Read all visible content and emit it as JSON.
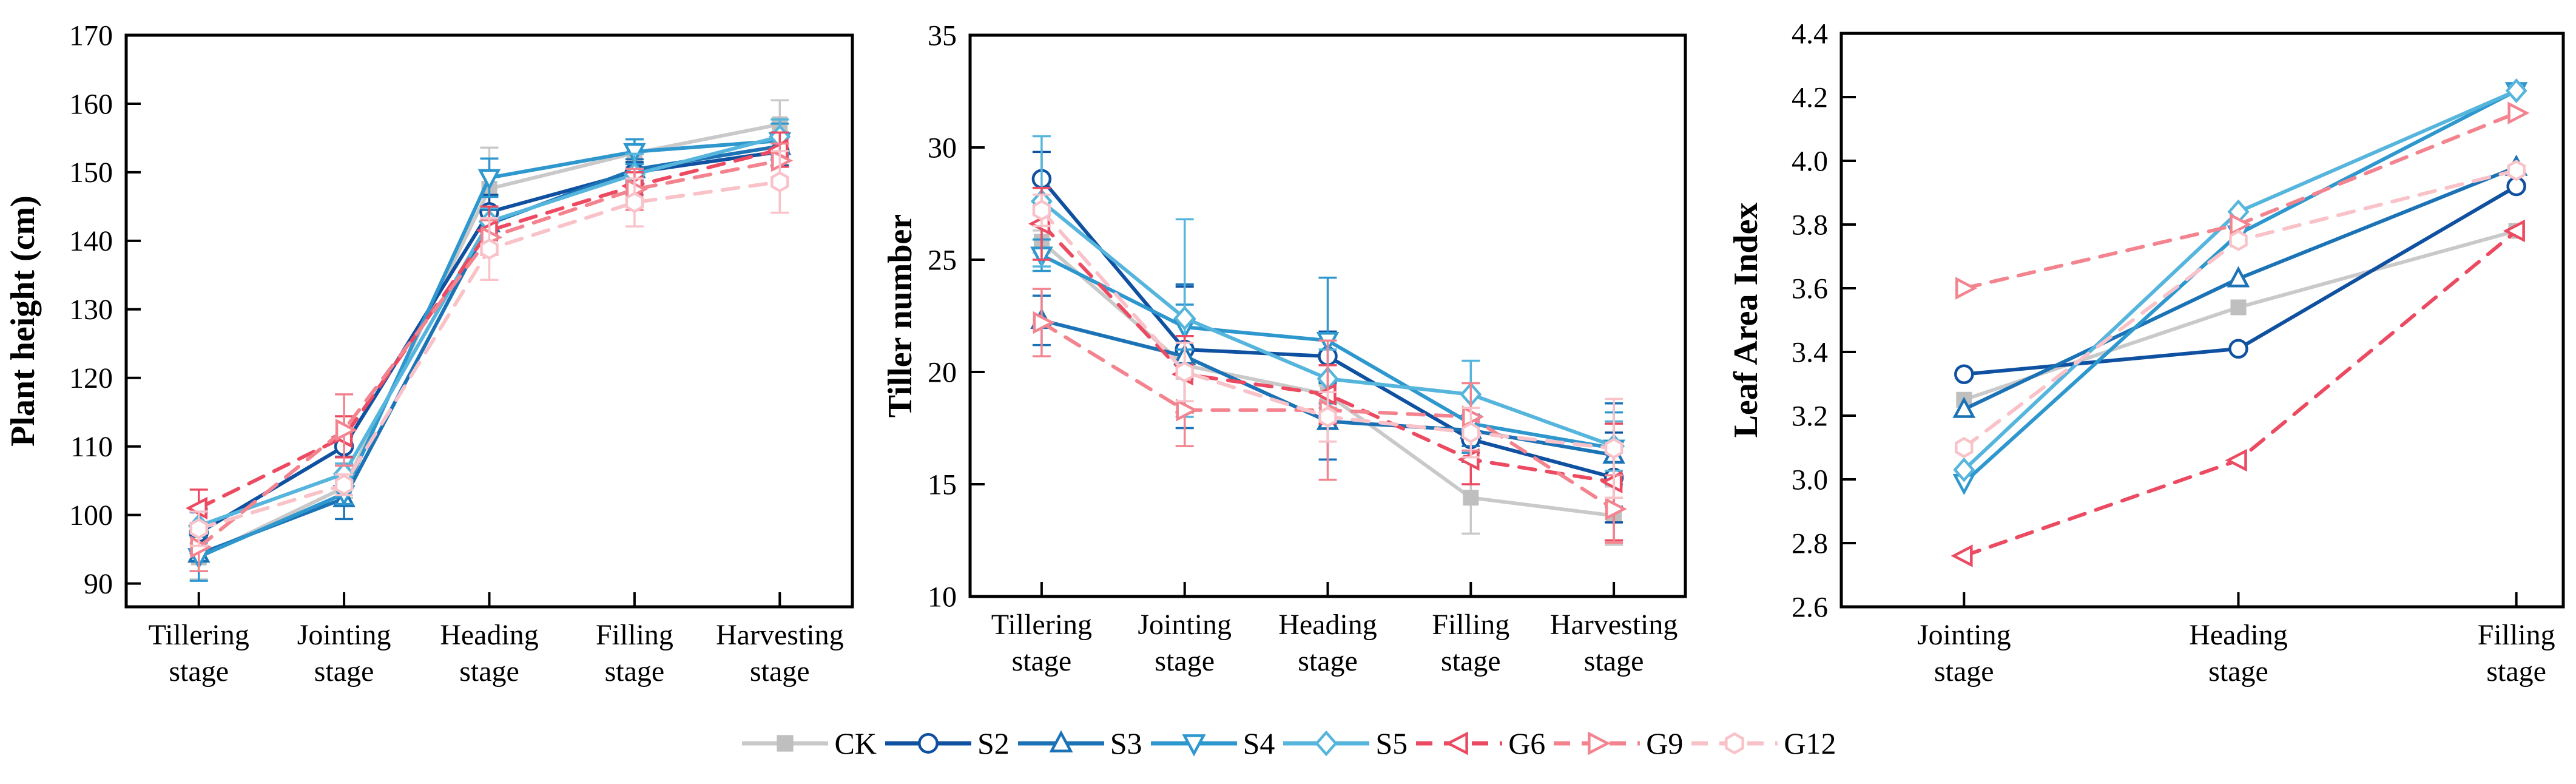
{
  "figure": {
    "background": "#ffffff",
    "frame_color": "#000000",
    "font_color": "#000000"
  },
  "legend": {
    "position": "bottom-center",
    "items": [
      {
        "label": "CK",
        "color": "#c9c9c9",
        "marker": "square",
        "marker_fill": "#bfbfbf",
        "dashed": false
      },
      {
        "label": "S2",
        "color": "#0f51a0",
        "marker": "circle",
        "marker_fill": "#ffffff",
        "dashed": false
      },
      {
        "label": "S3",
        "color": "#1b73b6",
        "marker": "triangle-up",
        "marker_fill": "#ffffff",
        "dashed": false
      },
      {
        "label": "S4",
        "color": "#2d97ce",
        "marker": "triangle-down",
        "marker_fill": "#ffffff",
        "dashed": false
      },
      {
        "label": "S5",
        "color": "#55b5dc",
        "marker": "diamond",
        "marker_fill": "#ffffff",
        "dashed": false
      },
      {
        "label": "G6",
        "color": "#ec4a61",
        "marker": "triangle-left",
        "marker_fill": "#ffffff",
        "dashed": true
      },
      {
        "label": "G9",
        "color": "#f3848f",
        "marker": "triangle-right",
        "marker_fill": "#ffffff",
        "dashed": true
      },
      {
        "label": "G12",
        "color": "#f9c2c8",
        "marker": "hexagon",
        "marker_fill": "#ffffff",
        "dashed": true
      }
    ]
  },
  "chart_data": [
    {
      "type": "line",
      "title": "",
      "xlabel": "",
      "ylabel": "Plant height (cm)",
      "categories": [
        "Tillering stage",
        "Jointing stage",
        "Heading stage",
        "Filling stage",
        "Harvesting stage"
      ],
      "ylim": [
        90,
        170
      ],
      "ytick_step": 10,
      "grid": false,
      "error_bars": true,
      "series": [
        {
          "name": "CK",
          "values": [
            93.8,
            104.0,
            147.6,
            152.8,
            157.0
          ],
          "errors": [
            3.2,
            1.5,
            6.0,
            2.0,
            3.5
          ]
        },
        {
          "name": "S2",
          "values": [
            97.4,
            110.0,
            144.2,
            150.0,
            153.0
          ],
          "errors": [
            3.0,
            1.5,
            2.5,
            1.5,
            2.0
          ]
        },
        {
          "name": "S3",
          "values": [
            94.3,
            102.4,
            142.5,
            150.4,
            153.8
          ],
          "errors": [
            2.5,
            3.0,
            2.0,
            1.5,
            2.0
          ]
        },
        {
          "name": "S4",
          "values": [
            93.9,
            103.1,
            149.2,
            153.0,
            154.6
          ],
          "errors": [
            3.5,
            1.5,
            2.8,
            1.8,
            2.5
          ]
        },
        {
          "name": "S5",
          "values": [
            98.4,
            106.0,
            142.8,
            149.7,
            155.2
          ],
          "errors": [
            2.5,
            1.5,
            2.0,
            3.0,
            2.5
          ]
        },
        {
          "name": "G6",
          "values": [
            101.0,
            111.4,
            141.5,
            148.0,
            153.3
          ],
          "errors": [
            2.7,
            3.0,
            3.5,
            2.0,
            2.5
          ]
        },
        {
          "name": "G9",
          "values": [
            95.3,
            112.4,
            140.5,
            147.5,
            151.7
          ],
          "errors": [
            3.5,
            5.2,
            2.5,
            3.0,
            2.5
          ]
        },
        {
          "name": "G12",
          "values": [
            98.0,
            104.4,
            138.8,
            145.6,
            148.6
          ],
          "errors": [
            2.5,
            1.5,
            4.5,
            3.5,
            4.5
          ]
        }
      ]
    },
    {
      "type": "line",
      "title": "",
      "xlabel": "",
      "ylabel": "Tiller number",
      "categories": [
        "Tillering stage",
        "Jointing stage",
        "Heading stage",
        "Filling stage",
        "Harvesting stage"
      ],
      "ylim": [
        10,
        35
      ],
      "ytick_step": 5,
      "grid": false,
      "error_bars": true,
      "series": [
        {
          "name": "CK",
          "values": [
            25.8,
            20.3,
            19.0,
            14.4,
            13.6
          ],
          "errors": [
            0.5,
            0.6,
            0.4,
            1.6,
            1.3
          ]
        },
        {
          "name": "S2",
          "values": [
            28.6,
            21.0,
            20.7,
            17.0,
            15.3
          ],
          "errors": [
            1.2,
            2.8,
            1.1,
            1.0,
            2.0
          ]
        },
        {
          "name": "S3",
          "values": [
            22.3,
            20.7,
            17.8,
            17.4,
            16.3
          ],
          "errors": [
            1.1,
            3.2,
            1.7,
            0.7,
            2.3
          ]
        },
        {
          "name": "S4",
          "values": [
            25.2,
            22.0,
            21.4,
            17.7,
            16.6
          ],
          "errors": [
            0.7,
            1.0,
            2.8,
            1.3,
            1.6
          ]
        },
        {
          "name": "S5",
          "values": [
            27.6,
            22.4,
            19.7,
            19.0,
            16.7
          ],
          "errors": [
            2.9,
            4.4,
            1.3,
            1.5,
            1.1
          ]
        },
        {
          "name": "G6",
          "values": [
            26.6,
            19.9,
            19.0,
            16.1,
            15.1
          ],
          "errors": [
            1.6,
            1.7,
            1.3,
            1.1,
            2.6
          ]
        },
        {
          "name": "G9",
          "values": [
            22.2,
            18.3,
            18.3,
            18.0,
            13.9
          ],
          "errors": [
            1.5,
            1.6,
            3.1,
            1.5,
            1.5
          ]
        },
        {
          "name": "G12",
          "values": [
            27.2,
            20.0,
            18.0,
            17.3,
            16.6
          ],
          "errors": [
            0.7,
            1.3,
            1.1,
            1.1,
            2.2
          ]
        }
      ]
    },
    {
      "type": "line",
      "title": "",
      "xlabel": "",
      "ylabel": "Leaf Area Index",
      "categories": [
        "Jointing stage",
        "Heading stage",
        "Filling stage"
      ],
      "ylim": [
        2.6,
        4.4
      ],
      "ytick_step": 0.2,
      "grid": false,
      "error_bars": false,
      "series": [
        {
          "name": "CK",
          "values": [
            3.25,
            3.54,
            3.78
          ],
          "errors": null
        },
        {
          "name": "S2",
          "values": [
            3.33,
            3.41,
            3.92
          ],
          "errors": null
        },
        {
          "name": "S3",
          "values": [
            3.22,
            3.63,
            3.98
          ],
          "errors": null
        },
        {
          "name": "S4",
          "values": [
            2.99,
            3.77,
            4.22
          ],
          "errors": null
        },
        {
          "name": "S5",
          "values": [
            3.03,
            3.84,
            4.22
          ],
          "errors": null
        },
        {
          "name": "G6",
          "values": [
            2.76,
            3.06,
            3.78
          ],
          "errors": null
        },
        {
          "name": "G9",
          "values": [
            3.6,
            3.8,
            4.15
          ],
          "errors": null
        },
        {
          "name": "G12",
          "values": [
            3.1,
            3.75,
            3.97
          ],
          "errors": null
        }
      ]
    }
  ]
}
